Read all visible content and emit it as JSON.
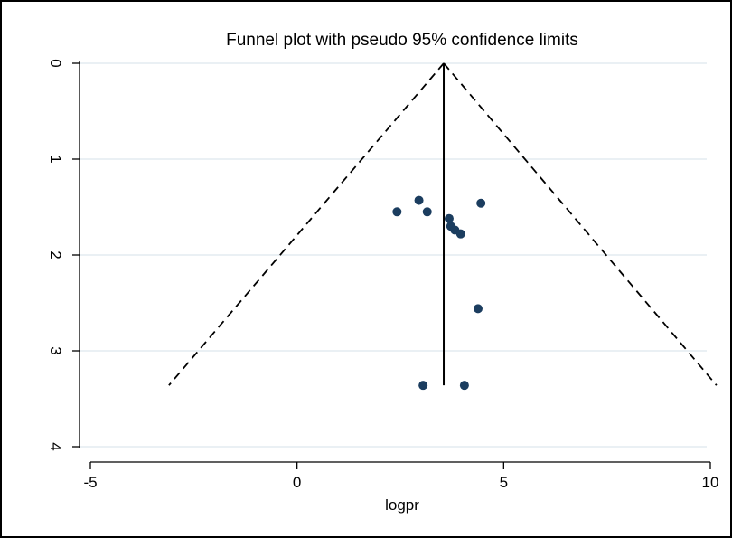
{
  "chart_data": {
    "type": "scatter",
    "title": "Funnel plot with pseudo 95% confidence limits",
    "xlabel": "logpr",
    "ylabel": "",
    "xlim": [
      -5,
      10
    ],
    "ylim": [
      0,
      4
    ],
    "y_reversed": true,
    "x_ticks": [
      -5,
      0,
      5,
      10
    ],
    "x_tick_labels": [
      "-5",
      "0",
      "5",
      "10"
    ],
    "y_ticks": [
      0,
      1,
      2,
      3,
      4
    ],
    "y_tick_labels": [
      "0",
      "1",
      "2",
      "3",
      "4"
    ],
    "grid": "horizontal",
    "colors": {
      "points": "#1b3d5f",
      "lines": "#000000",
      "grid": "#e4ebf0",
      "background": "#ffffff"
    },
    "points": [
      {
        "x": 2.42,
        "y": 1.55
      },
      {
        "x": 2.95,
        "y": 1.43
      },
      {
        "x": 3.15,
        "y": 1.55
      },
      {
        "x": 3.68,
        "y": 1.62
      },
      {
        "x": 3.72,
        "y": 1.7
      },
      {
        "x": 3.82,
        "y": 1.74
      },
      {
        "x": 3.96,
        "y": 1.78
      },
      {
        "x": 4.45,
        "y": 1.46
      },
      {
        "x": 4.38,
        "y": 2.56
      },
      {
        "x": 3.05,
        "y": 3.36
      },
      {
        "x": 4.05,
        "y": 3.36
      }
    ],
    "pooled_estimate": {
      "x": 3.55,
      "y_range": [
        0,
        3.36
      ]
    },
    "confidence_limits": {
      "apex": {
        "x": 3.55,
        "y": 0
      },
      "lower_left": {
        "x": -3.1,
        "y": 3.36
      },
      "lower_right": {
        "x": 10.15,
        "y": 3.36
      }
    }
  }
}
